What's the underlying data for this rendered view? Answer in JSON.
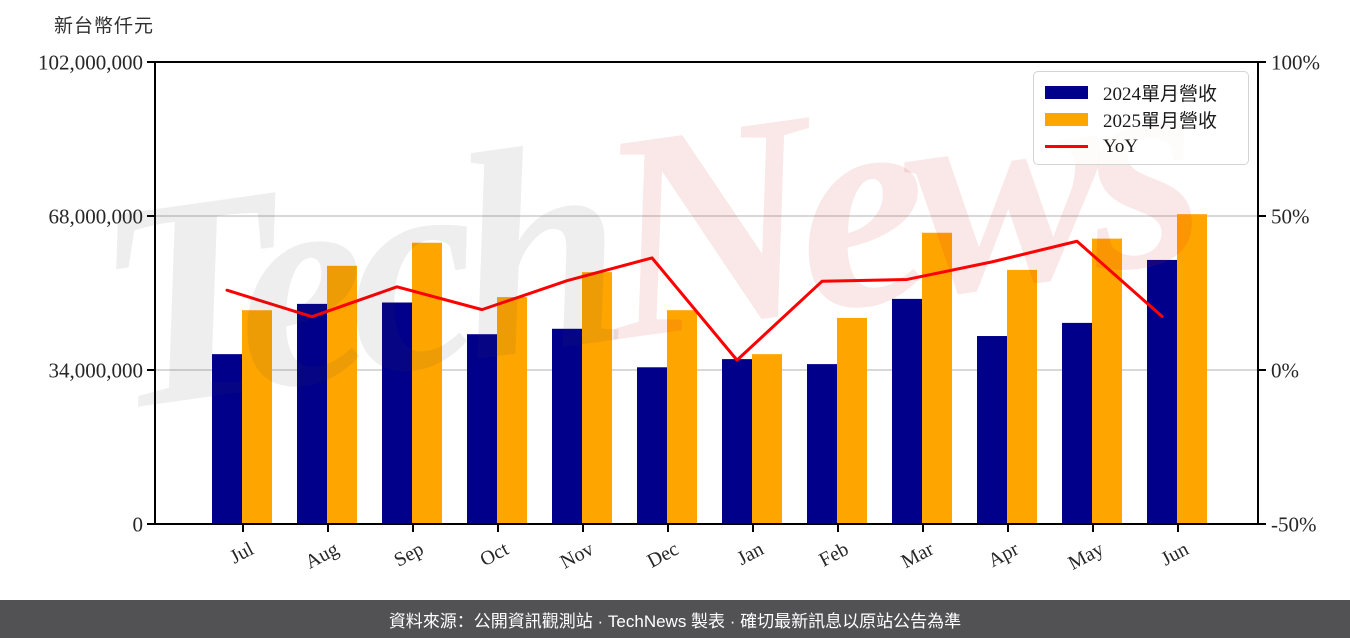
{
  "title_unit": "新台幣仟元",
  "footer": {
    "text": "資料來源：公開資訊觀測站 · TechNews 製表 · 確切最新訊息以原站公告為準"
  },
  "watermark": {
    "part1": "Tech",
    "part2": "News"
  },
  "legend": {
    "items": [
      {
        "label": "2024單月營收",
        "type": "rect",
        "color": "#00008B"
      },
      {
        "label": "2025單月營收",
        "type": "rect",
        "color": "#FFA500"
      },
      {
        "label": "YoY",
        "type": "line",
        "color": "#FF0000"
      }
    ]
  },
  "colors": {
    "bar_2024": "#00008B",
    "bar_2025": "#FFA500",
    "yoy_line": "#FF0000",
    "gridline": "#cccccc",
    "spine": "#000000",
    "footer_bg": "#525254",
    "label_text": "#262626"
  },
  "chart_data": {
    "type": "bar+line",
    "title": "新台幣仟元",
    "categories": [
      "Jul",
      "Aug",
      "Sep",
      "Oct",
      "Nov",
      "Dec",
      "Jan",
      "Feb",
      "Mar",
      "Apr",
      "May",
      "Jun"
    ],
    "series": [
      {
        "name": "2024單月營收",
        "axis": "left",
        "type": "bar",
        "color": "#00008B",
        "values": [
          37500000,
          48600000,
          48900000,
          41900000,
          43100000,
          34600000,
          36400000,
          35300000,
          49700000,
          41500000,
          44400000,
          58300000
        ]
      },
      {
        "name": "2025單月營收",
        "axis": "left",
        "type": "bar",
        "color": "#FFA500",
        "values": [
          47200000,
          57000000,
          62100000,
          50100000,
          55600000,
          47200000,
          37500000,
          45500000,
          64300000,
          56100000,
          63000000,
          68400000
        ]
      },
      {
        "name": "YoY",
        "axis": "right",
        "type": "line",
        "color": "#FF0000",
        "unit": "%",
        "values": [
          25.9,
          17.3,
          27.0,
          19.6,
          29.0,
          36.4,
          3.2,
          28.8,
          29.4,
          35.1,
          41.8,
          17.4
        ]
      }
    ],
    "y_left": {
      "label": "新台幣仟元",
      "min": 0,
      "max": 102000000,
      "ticks": [
        102000000,
        68000000,
        34000000,
        0
      ],
      "tick_labels": [
        "102,000,000",
        "68,000,000",
        "34,000,000",
        "0"
      ]
    },
    "y_right": {
      "min": -50,
      "max": 100,
      "ticks": [
        100,
        50,
        0,
        -50
      ],
      "tick_labels": [
        "100%",
        "50%",
        "0%",
        "-50%"
      ]
    },
    "grid": "horizontal at 68,000,000 (50%) and 34,000,000 (0%)",
    "legend_position": "upper right"
  }
}
